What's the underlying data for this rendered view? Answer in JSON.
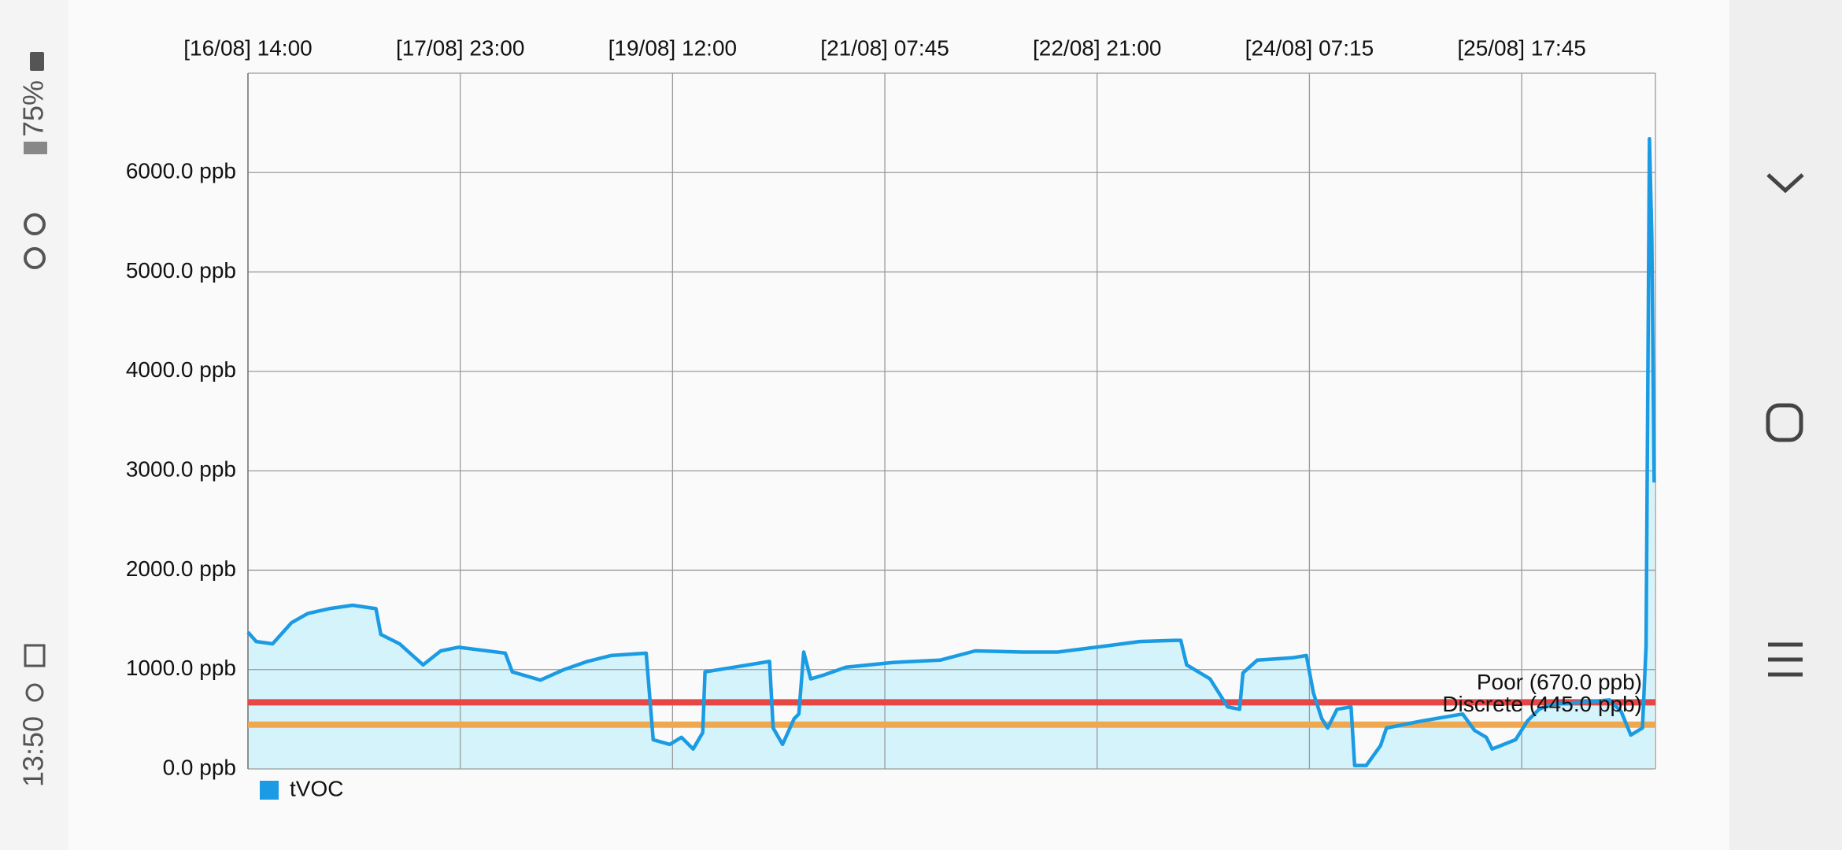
{
  "status_bar": {
    "time": "13:50",
    "battery": "75%"
  },
  "chart_data": {
    "type": "line",
    "x": [
      0,
      0.39,
      1.16,
      2.05,
      2.82,
      3.82,
      4.93,
      6.03,
      6.26,
      7.14,
      8.25,
      9.08,
      9.91,
      12.12,
      12.45,
      13.78,
      14.89,
      15.99,
      17.1,
      18.76,
      19.09,
      19.87,
      20.42,
      20.97,
      21.42,
      21.53,
      22.91,
      24.57,
      24.74,
      25.18,
      25.73,
      25.95,
      26.18,
      26.51,
      27.06,
      28.17,
      30.38,
      32.6,
      34.26,
      36.47,
      38.13,
      40.34,
      42.0,
      43.66,
      43.94,
      44.22,
      45.32,
      46.15,
      46.71,
      46.87,
      47.54,
      49.2,
      49.86,
      50.19,
      50.58,
      50.86,
      51.3,
      51.96,
      52.13,
      52.68,
      53.35,
      53.63,
      55.29,
      57.22,
      57.78,
      58.33,
      58.61,
      59.71,
      60.27,
      60.82,
      61.37,
      64.14,
      64.69,
      65.14,
      65.69,
      65.86,
      66.02,
      66.13,
      66.24
    ],
    "series": [
      {
        "name": "tVOC",
        "color": "#1a9be3",
        "fill": "#d4f3fb",
        "values": [
          1376,
          1282,
          1259,
          1471,
          1565,
          1612,
          1647,
          1612,
          1353,
          1259,
          1047,
          1188,
          1224,
          1165,
          976,
          894,
          1000,
          1082,
          1141,
          1165,
          294,
          247,
          318,
          200,
          365,
          976,
          1024,
          1082,
          412,
          247,
          506,
          553,
          1176,
          906,
          941,
          1024,
          1071,
          1094,
          1188,
          1176,
          1176,
          1235,
          1282,
          1294,
          1294,
          1047,
          906,
          624,
          600,
          965,
          1094,
          1118,
          1141,
          765,
          506,
          412,
          600,
          624,
          35,
          35,
          235,
          412,
          482,
          553,
          388,
          318,
          200,
          294,
          482,
          600,
          647,
          694,
          576,
          341,
          412,
          1235,
          6341,
          5353,
          2882
        ]
      }
    ],
    "thresholds": [
      {
        "label": "Poor (670.0 ppb)",
        "value": 670,
        "color": "#e84545"
      },
      {
        "label": "Discrete (445.0 ppb)",
        "value": 445,
        "color": "#f0a850"
      }
    ],
    "xlim": [
      0,
      66.3
    ],
    "xticks": [
      {
        "value": 0,
        "label": "[16/08] 14:00"
      },
      {
        "value": 10,
        "label": "[17/08] 23:00"
      },
      {
        "value": 20,
        "label": "[19/08] 12:00"
      },
      {
        "value": 30,
        "label": "[21/08] 07:45"
      },
      {
        "value": 40,
        "label": "[22/08] 21:00"
      },
      {
        "value": 50,
        "label": "[24/08] 07:15"
      },
      {
        "value": 60,
        "label": "[25/08] 17:45"
      }
    ],
    "ylim": [
      0,
      7000
    ],
    "yticks": [
      {
        "value": 0,
        "label": "0.0 ppb"
      },
      {
        "value": 1000,
        "label": "1000.0 ppb"
      },
      {
        "value": 2000,
        "label": "2000.0 ppb"
      },
      {
        "value": 3000,
        "label": "3000.0 ppb"
      },
      {
        "value": 4000,
        "label": "4000.0 ppb"
      },
      {
        "value": 5000,
        "label": "5000.0 ppb"
      },
      {
        "value": 6000,
        "label": "6000.0 ppb"
      }
    ],
    "grid": true
  }
}
